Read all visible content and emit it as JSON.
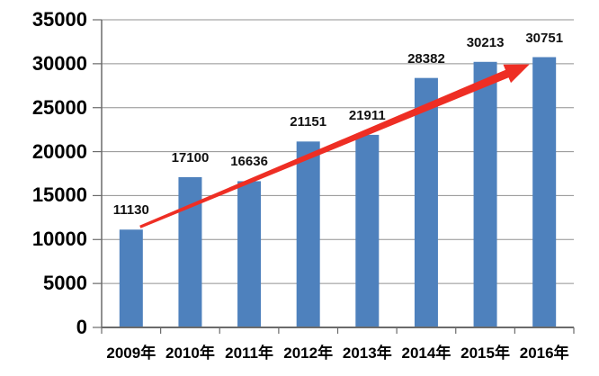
{
  "chart_data": {
    "type": "bar",
    "title": "",
    "xlabel": "",
    "ylabel": "",
    "categories": [
      "2009年",
      "2010年",
      "2011年",
      "2012年",
      "2013年",
      "2014年",
      "2015年",
      "2016年"
    ],
    "values": [
      11130,
      17100,
      16636,
      21151,
      21911,
      28382,
      30213,
      30751
    ],
    "data_labels": [
      "11130",
      "17100",
      "16636",
      "21151",
      "21911",
      "28382",
      "30213",
      "30751"
    ],
    "ylim": [
      0,
      35000
    ],
    "ytick_step": 5000,
    "yticks": [
      0,
      5000,
      10000,
      15000,
      20000,
      25000,
      30000,
      35000
    ],
    "grid": true,
    "legend": false,
    "annotation": {
      "type": "trend-arrow",
      "from_category": "2009年",
      "to_category": "2016年"
    },
    "colors": {
      "bar": "#4E81BD",
      "arrow": "#EE2E24",
      "gridline": "#909090",
      "axis": "#6B6B6B",
      "text": "#000000",
      "background": "#FFFFFF"
    }
  }
}
